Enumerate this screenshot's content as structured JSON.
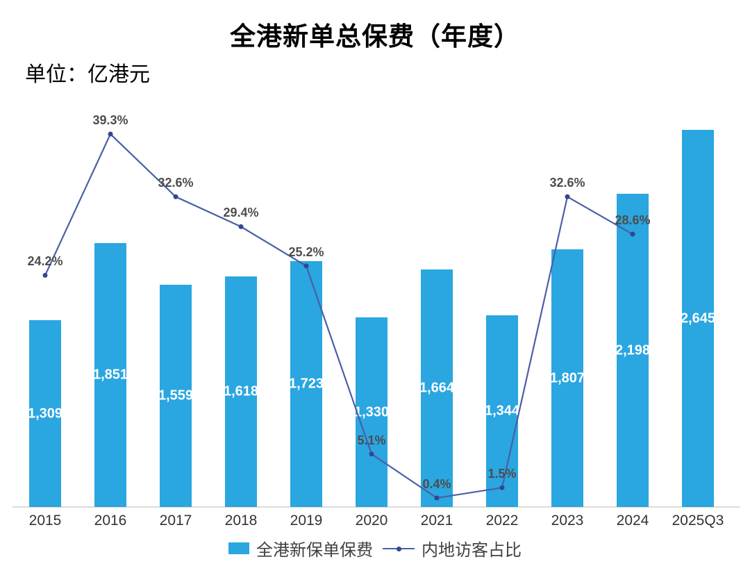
{
  "chart_data": {
    "type": "bar",
    "title": "全港新单总保费（年度）",
    "unit_label": "单位：亿港元",
    "categories": [
      "2015",
      "2016",
      "2017",
      "2018",
      "2019",
      "2020",
      "2021",
      "2022",
      "2023",
      "2024",
      "2025Q3"
    ],
    "series": [
      {
        "name": "全港新保单保费",
        "type": "bar",
        "color": "#2aa6e0",
        "values": [
          1309,
          1851,
          1559,
          1618,
          1723,
          1330,
          1664,
          1344,
          1807,
          2198,
          2645
        ],
        "labels": [
          "1,309",
          "1,851",
          "1,559",
          "1,618",
          "1,723",
          "1,330",
          "1,664",
          "1,344",
          "1,807",
          "2,198",
          "2,645"
        ]
      },
      {
        "name": "内地访客占比",
        "type": "line",
        "color": "#4a5fa8",
        "marker_color": "#31478f",
        "values": [
          24.2,
          39.3,
          32.6,
          29.4,
          25.2,
          5.1,
          0.4,
          1.5,
          32.6,
          28.6,
          null
        ],
        "labels": [
          "24.2%",
          "39.3%",
          "32.6%",
          "29.4%",
          "25.2%",
          "5.1%",
          "0.4%",
          "1.5%",
          "32.6%",
          "28.6%",
          null
        ]
      }
    ],
    "xlabel": "",
    "ylabel": "亿港元",
    "bar_axis_range": [
      0,
      2800
    ],
    "pct_axis_range": [
      0,
      42.5
    ],
    "grid": false,
    "legend_position": "bottom"
  },
  "colors": {
    "bar": "#2aa6e0",
    "line": "#4a5fa8",
    "marker": "#31478f",
    "axis_line": "#dcdcdc",
    "value_label": "#ffffff",
    "pct_label": "#4d4d4d",
    "tick_label": "#333333"
  },
  "legend": {
    "bar_label": "全港新保单保费",
    "line_label": "内地访客占比"
  }
}
